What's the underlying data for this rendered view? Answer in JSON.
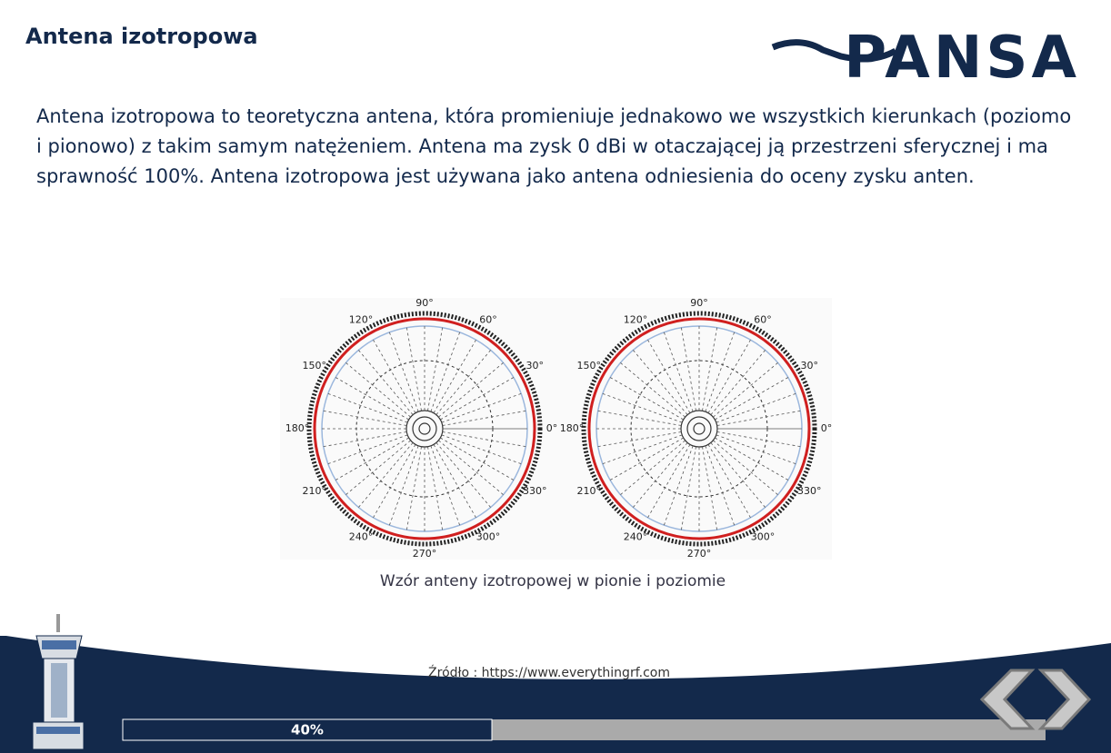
{
  "header": {
    "title": "Antena izotropowa",
    "logo": "PANSA"
  },
  "body": {
    "paragraph": "Antena izotropowa to teoretyczna antena, która promieniuje jednakowo we wszystkich kierunkach (poziomo i pionowo) z takim samym natężeniem. Antena ma zysk 0 dBi w otaczającej ją przestrzeni sferycznej i ma sprawność 100%. Antena izotropowa jest używana jako antena odniesienia do oceny zysku anten."
  },
  "figure": {
    "angles": [
      {
        "value": 0,
        "label": "0°"
      },
      {
        "value": 30,
        "label": "30°"
      },
      {
        "value": 60,
        "label": "60°"
      },
      {
        "value": 90,
        "label": "90°"
      },
      {
        "value": 120,
        "label": "120°"
      },
      {
        "value": 150,
        "label": "150°"
      },
      {
        "value": 180,
        "label": "180°"
      },
      {
        "value": 210,
        "label": "210°"
      },
      {
        "value": 240,
        "label": "240°"
      },
      {
        "value": 270,
        "label": "270°"
      },
      {
        "value": 300,
        "label": "300°"
      },
      {
        "value": 330,
        "label": "330°"
      }
    ],
    "caption": "Wzór anteny izotropowej w pionie i poziomie"
  },
  "footer": {
    "source": "Źródło : https://www.everythingrf.com",
    "progress": {
      "value": 40,
      "label": "40%"
    }
  }
}
